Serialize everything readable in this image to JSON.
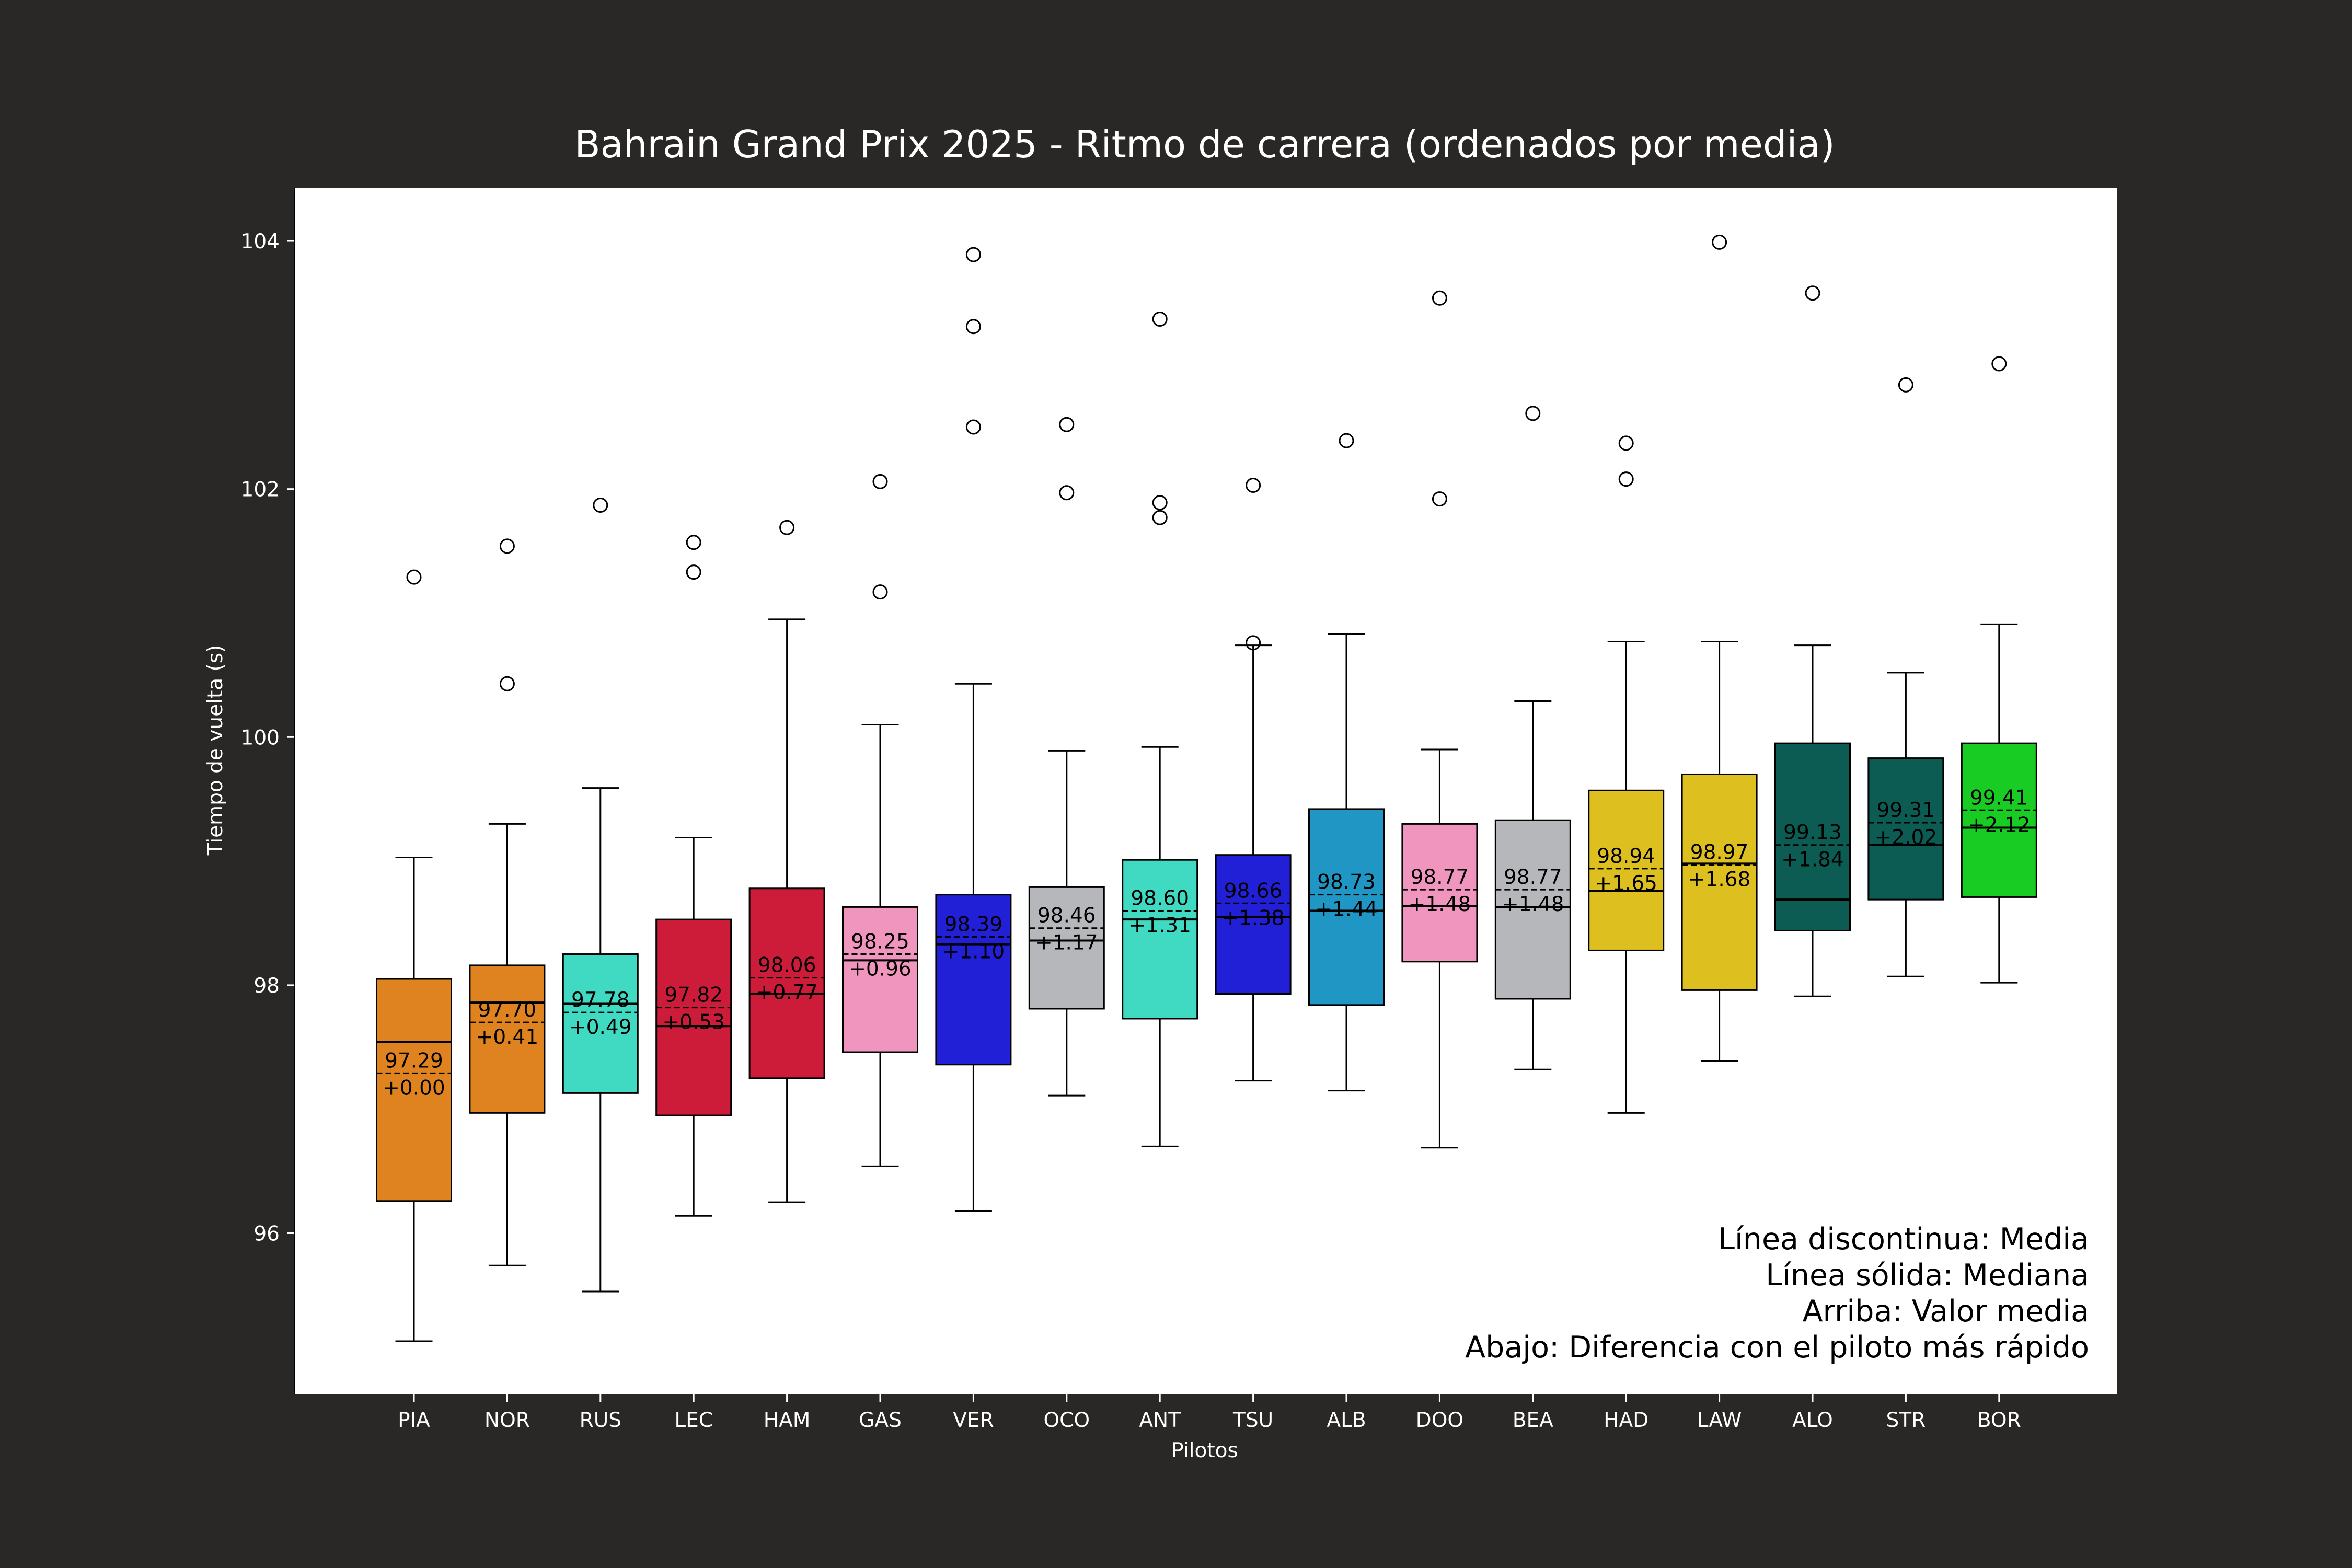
{
  "chart_data": {
    "type": "box",
    "title": "Bahrain Grand Prix 2025 - Ritmo de carrera (ordenados por media)",
    "xlabel": "Pilotos",
    "ylabel": "Tiempo de vuelta (s)",
    "ylim": [
      94.7,
      104.43
    ],
    "yticks": [
      96,
      98,
      100,
      102,
      104
    ],
    "grid": false,
    "legend_position": "bottom-right",
    "legend_lines": [
      "Línea discontinua: Media",
      "Línea sólida: Mediana",
      "Arriba: Valor media",
      "Abajo: Diferencia con el piloto más rápido"
    ],
    "drivers": [
      {
        "name": "PIA",
        "color": "#df8220",
        "whisker_low": 95.13,
        "q1": 96.26,
        "median": 97.54,
        "q3": 98.05,
        "whisker_high": 99.03,
        "mean": 97.29,
        "mean_label": "97.29",
        "diff_label": "+0.00",
        "outliers": [
          101.29
        ]
      },
      {
        "name": "NOR",
        "color": "#df8220",
        "whisker_low": 95.74,
        "q1": 96.97,
        "median": 97.86,
        "q3": 98.16,
        "whisker_high": 99.3,
        "mean": 97.7,
        "mean_label": "97.70",
        "diff_label": "+0.41",
        "outliers": [
          101.54,
          100.43
        ]
      },
      {
        "name": "RUS",
        "color": "#40d9c2",
        "whisker_low": 95.53,
        "q1": 97.13,
        "median": 97.85,
        "q3": 98.25,
        "whisker_high": 99.59,
        "mean": 97.78,
        "mean_label": "97.78",
        "diff_label": "+0.49",
        "outliers": [
          101.87
        ]
      },
      {
        "name": "LEC",
        "color": "#cc1c3a",
        "whisker_low": 96.14,
        "q1": 96.95,
        "median": 97.67,
        "q3": 98.53,
        "whisker_high": 99.19,
        "mean": 97.82,
        "mean_label": "97.82",
        "diff_label": "+0.53",
        "outliers": [
          101.57,
          101.33
        ]
      },
      {
        "name": "HAM",
        "color": "#cc1c3a",
        "whisker_low": 96.25,
        "q1": 97.25,
        "median": 97.93,
        "q3": 98.78,
        "whisker_high": 100.95,
        "mean": 98.06,
        "mean_label": "98.06",
        "diff_label": "+0.77",
        "outliers": [
          101.69
        ]
      },
      {
        "name": "GAS",
        "color": "#f096be",
        "whisker_low": 96.54,
        "q1": 97.46,
        "median": 98.2,
        "q3": 98.63,
        "whisker_high": 100.1,
        "mean": 98.25,
        "mean_label": "98.25",
        "diff_label": "+0.96",
        "outliers": [
          102.06,
          101.17
        ]
      },
      {
        "name": "VER",
        "color": "#2220d6",
        "whisker_low": 96.18,
        "q1": 97.36,
        "median": 98.33,
        "q3": 98.73,
        "whisker_high": 100.43,
        "mean": 98.39,
        "mean_label": "98.39",
        "diff_label": "+1.10",
        "outliers": [
          103.89,
          103.31,
          102.5
        ]
      },
      {
        "name": "OCO",
        "color": "#b5b7ba",
        "whisker_low": 97.11,
        "q1": 97.81,
        "median": 98.36,
        "q3": 98.79,
        "whisker_high": 99.89,
        "mean": 98.46,
        "mean_label": "98.46",
        "diff_label": "+1.17",
        "outliers": [
          102.52,
          101.97
        ]
      },
      {
        "name": "ANT",
        "color": "#40d9c2",
        "whisker_low": 96.7,
        "q1": 97.73,
        "median": 98.53,
        "q3": 99.01,
        "whisker_high": 99.92,
        "mean": 98.6,
        "mean_label": "98.60",
        "diff_label": "+1.31",
        "outliers": [
          103.37,
          101.89,
          101.77
        ]
      },
      {
        "name": "TSU",
        "color": "#2220d6",
        "whisker_low": 97.23,
        "q1": 97.93,
        "median": 98.55,
        "q3": 99.05,
        "whisker_high": 100.74,
        "mean": 98.66,
        "mean_label": "98.66",
        "diff_label": "+1.38",
        "outliers": [
          102.03,
          100.76
        ]
      },
      {
        "name": "ALB",
        "color": "#1f96c4",
        "whisker_low": 97.15,
        "q1": 97.84,
        "median": 98.6,
        "q3": 99.42,
        "whisker_high": 100.83,
        "mean": 98.73,
        "mean_label": "98.73",
        "diff_label": "+1.44",
        "outliers": [
          102.39
        ]
      },
      {
        "name": "DOO",
        "color": "#f096be",
        "whisker_low": 96.69,
        "q1": 98.19,
        "median": 98.64,
        "q3": 99.3,
        "whisker_high": 99.9,
        "mean": 98.77,
        "mean_label": "98.77",
        "diff_label": "+1.48",
        "outliers": [
          103.54,
          101.92
        ]
      },
      {
        "name": "BEA",
        "color": "#b5b7ba",
        "whisker_low": 97.32,
        "q1": 97.89,
        "median": 98.63,
        "q3": 99.33,
        "whisker_high": 100.29,
        "mean": 98.77,
        "mean_label": "98.77",
        "diff_label": "+1.48",
        "outliers": [
          102.61
        ]
      },
      {
        "name": "HAD",
        "color": "#ddc020",
        "whisker_low": 96.97,
        "q1": 98.28,
        "median": 98.76,
        "q3": 99.57,
        "whisker_high": 100.77,
        "mean": 98.94,
        "mean_label": "98.94",
        "diff_label": "+1.65",
        "outliers": [
          102.37,
          102.08
        ]
      },
      {
        "name": "LAW",
        "color": "#ddc020",
        "whisker_low": 97.39,
        "q1": 97.96,
        "median": 98.98,
        "q3": 99.7,
        "whisker_high": 100.77,
        "mean": 98.97,
        "mean_label": "98.97",
        "diff_label": "+1.68",
        "outliers": [
          103.99
        ]
      },
      {
        "name": "ALO",
        "color": "#0c5c54",
        "whisker_low": 97.91,
        "q1": 98.44,
        "median": 98.69,
        "q3": 99.95,
        "whisker_high": 100.74,
        "mean": 99.13,
        "mean_label": "99.13",
        "diff_label": "+1.84",
        "outliers": [
          103.58
        ]
      },
      {
        "name": "STR",
        "color": "#0c5c54",
        "whisker_low": 98.07,
        "q1": 98.69,
        "median": 99.13,
        "q3": 99.83,
        "whisker_high": 100.52,
        "mean": 99.31,
        "mean_label": "99.31",
        "diff_label": "+2.02",
        "outliers": [
          102.84
        ]
      },
      {
        "name": "BOR",
        "color": "#18cc24",
        "whisker_low": 98.02,
        "q1": 98.71,
        "median": 99.27,
        "q3": 99.95,
        "whisker_high": 100.91,
        "mean": 99.41,
        "mean_label": "99.41",
        "diff_label": "+2.12",
        "outliers": [
          103.01
        ]
      }
    ]
  }
}
